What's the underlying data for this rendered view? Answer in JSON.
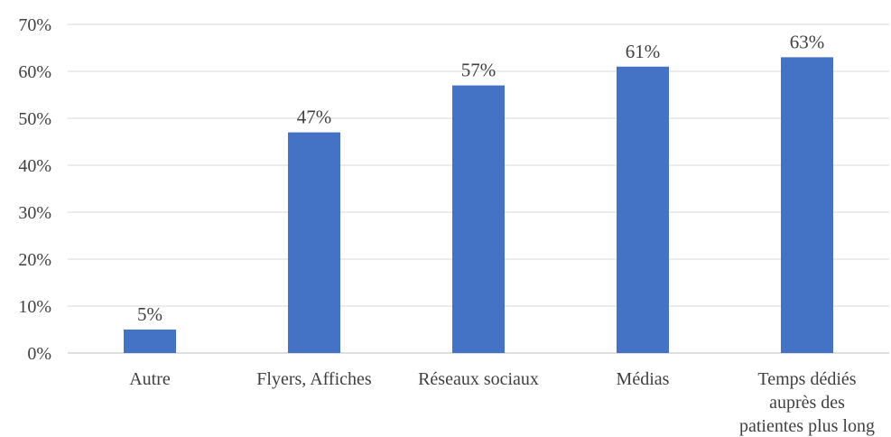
{
  "chart_data": {
    "type": "bar",
    "categories": [
      [
        "Autre"
      ],
      [
        "Flyers, Affiches"
      ],
      [
        "Réseaux sociaux"
      ],
      [
        "Médias"
      ],
      [
        "Temps dédiés",
        "auprès des",
        "patientes plus long"
      ]
    ],
    "values": [
      5,
      47,
      57,
      61,
      63
    ],
    "data_labels": [
      "5%",
      "47%",
      "57%",
      "61%",
      "63%"
    ],
    "y_ticks": [
      "0%",
      "10%",
      "20%",
      "30%",
      "40%",
      "50%",
      "60%",
      "70%"
    ],
    "ylim": [
      0,
      70
    ],
    "grid": true,
    "legend": "none",
    "bar_color": "#4472C4",
    "title": "",
    "xlabel": "",
    "ylabel": ""
  }
}
